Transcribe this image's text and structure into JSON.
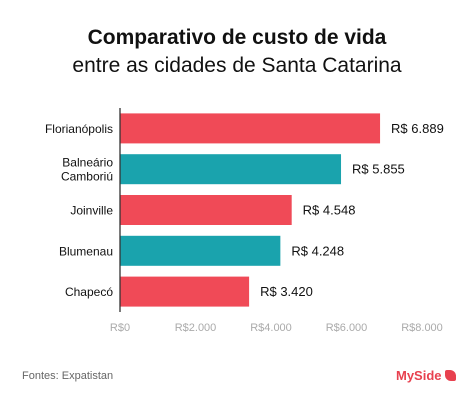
{
  "header": {
    "title": "Comparativo de custo de vida",
    "subtitle": "entre as cidades de Santa Catarina"
  },
  "footer": {
    "source": "Fontes: Expatistan"
  },
  "brand": {
    "name": "MySide",
    "color": "#e8414f"
  },
  "chart_data": {
    "type": "bar",
    "orientation": "horizontal",
    "categories": [
      [
        "Florianópolis"
      ],
      [
        "Balneário",
        "Camboriú"
      ],
      [
        "Joinville"
      ],
      [
        "Blumenau"
      ],
      [
        "Chapecó"
      ]
    ],
    "values": [
      6889,
      5855,
      4548,
      4248,
      3420
    ],
    "value_labels": [
      "R$ 6.889",
      "R$ 5.855",
      "R$ 4.548",
      "R$ 4.248",
      "R$ 3.420"
    ],
    "colors": [
      "#f04a57",
      "#1aa3ad",
      "#f04a57",
      "#1aa3ad",
      "#f04a57"
    ],
    "xlim": [
      0,
      8000
    ],
    "x_ticks": [
      0,
      2000,
      4000,
      6000,
      8000
    ],
    "x_tick_labels": [
      "R$0",
      "R$2.000",
      "R$4.000",
      "R$6.000",
      "R$8.000"
    ],
    "grid": false
  }
}
